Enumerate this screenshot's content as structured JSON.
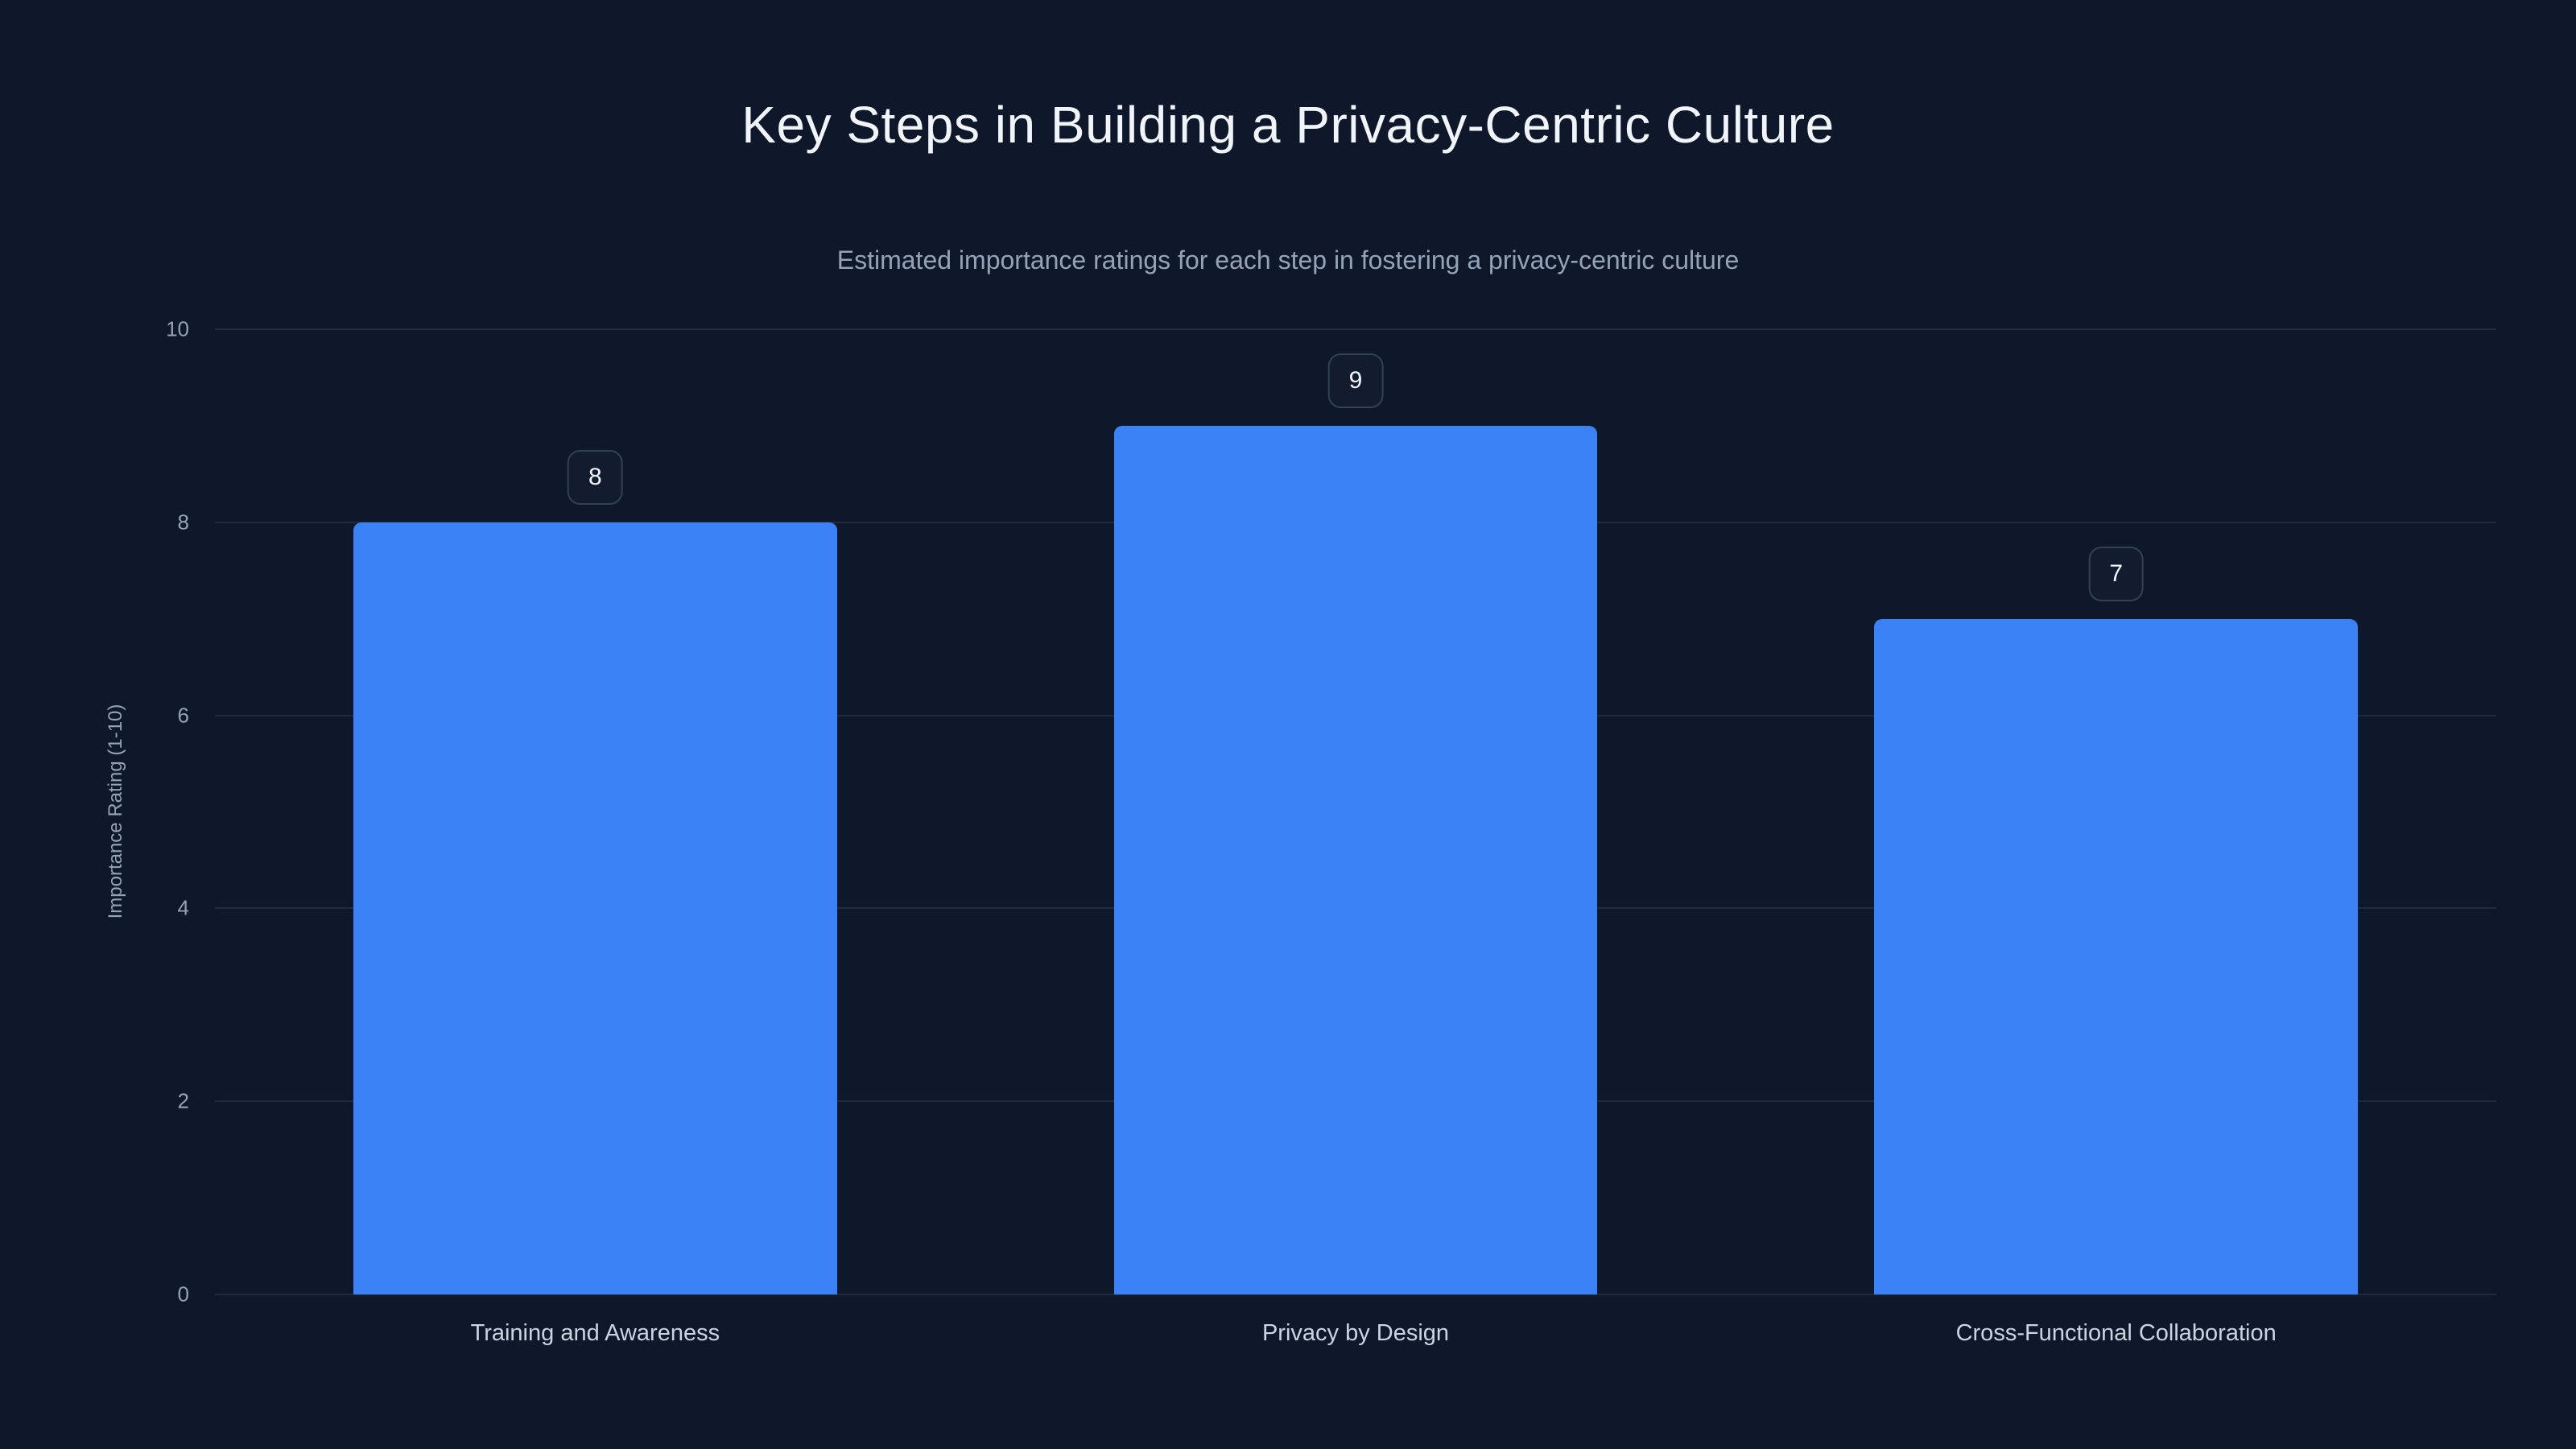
{
  "chart_data": {
    "type": "bar",
    "title": "Key Steps in Building a Privacy-Centric Culture",
    "subtitle": "Estimated importance ratings for each step in fostering a privacy-centric culture",
    "categories": [
      "Training and Awareness",
      "Privacy by Design",
      "Cross-Functional Collaboration"
    ],
    "values": [
      8,
      9,
      7
    ],
    "value_labels": [
      "8",
      "9",
      "7"
    ],
    "xlabel": "",
    "ylabel": "Importance Rating (1-10)",
    "ylim": [
      0,
      10
    ],
    "yticks": [
      0,
      2,
      4,
      6,
      8,
      10
    ],
    "grid": true,
    "legend": "none",
    "colors": {
      "background": "#0f172a",
      "title": "#f1f5f9",
      "subtitle": "#94a3b8",
      "tick_label": "#94a3b8",
      "category_label": "#cbd5e1",
      "gridline": "rgba(148,163,184,0.14)",
      "bar": "#3b82f6",
      "badge_bg": "#121c2e",
      "badge_border": "#334155",
      "badge_text": "#f1f5f9"
    }
  }
}
